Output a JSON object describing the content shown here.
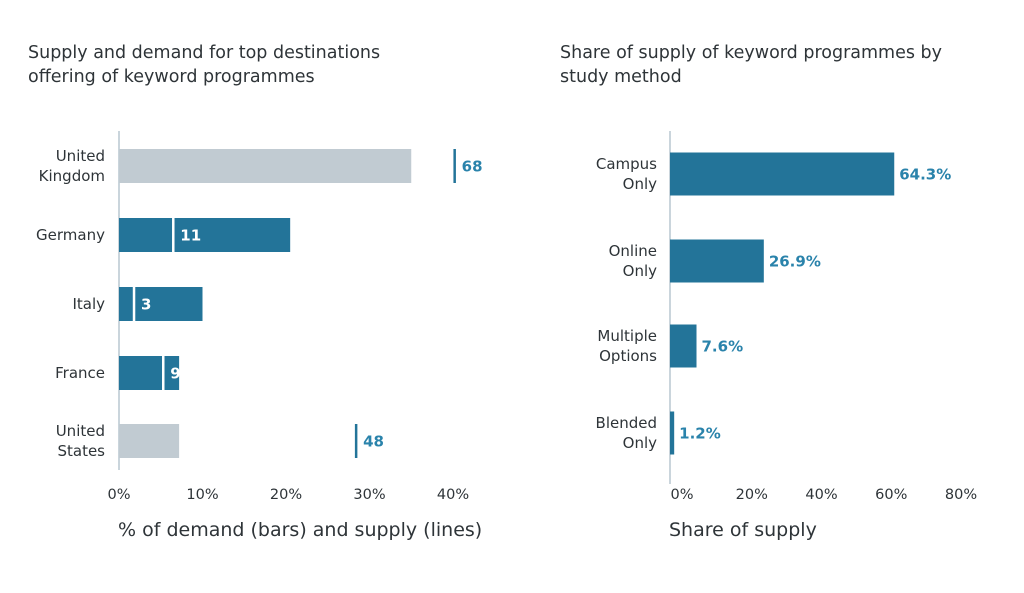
{
  "chart_data": [
    {
      "type": "bar",
      "title": "Supply and demand for top destinations offering of keyword programmes",
      "xlabel": "% of demand (bars) and supply (lines)",
      "ylabel": "",
      "xlim": [
        0,
        40
      ],
      "xticks": [
        "0%",
        "10%",
        "20%",
        "30%",
        "40%"
      ],
      "xtick_values": [
        0,
        10,
        20,
        30,
        40
      ],
      "categories": [
        "United Kingdom",
        "Germany",
        "Italy",
        "France",
        "United States"
      ],
      "category_lines": [
        [
          "United",
          "Kingdom"
        ],
        [
          "Germany"
        ],
        [
          "Italy"
        ],
        [
          "France"
        ],
        [
          "United",
          "States"
        ]
      ],
      "series": [
        {
          "name": "Demand",
          "values": [
            35,
            20.5,
            10,
            7.2,
            7.2
          ],
          "bar_colors": [
            "#c1cbd2",
            "#237499",
            "#237499",
            "#237499",
            "#c1cbd2"
          ]
        },
        {
          "name": "Supply",
          "values": [
            40.2,
            6.5,
            1.8,
            5.3,
            28.4
          ],
          "labels": [
            "68",
            "11",
            "3",
            "9",
            "48"
          ]
        }
      ],
      "grid": false
    },
    {
      "type": "bar",
      "title": "Share of supply of keyword programmes by study method",
      "xlabel": "Share of supply",
      "ylabel": "",
      "xlim": [
        0,
        80
      ],
      "xticks": [
        "0%",
        "20%",
        "40%",
        "60%",
        "80%"
      ],
      "xtick_values": [
        0,
        20,
        40,
        60,
        80
      ],
      "categories": [
        "Campus Only",
        "Online Only",
        "Multiple Options",
        "Blended Only"
      ],
      "category_lines": [
        [
          "Campus",
          "Only"
        ],
        [
          "Online",
          "Only"
        ],
        [
          "Multiple",
          "Options"
        ],
        [
          "Blended",
          "Only"
        ]
      ],
      "values": [
        64.3,
        26.9,
        7.6,
        1.2
      ],
      "value_labels": [
        "64.3%",
        "26.9%",
        "7.6%",
        "1.2%"
      ],
      "grid": false
    }
  ],
  "colors": {
    "bar": "#237499",
    "bar_light": "#c1cbd2",
    "label": "#2a83ab",
    "text": "#2e3438",
    "axis": "#b8c7d0"
  }
}
